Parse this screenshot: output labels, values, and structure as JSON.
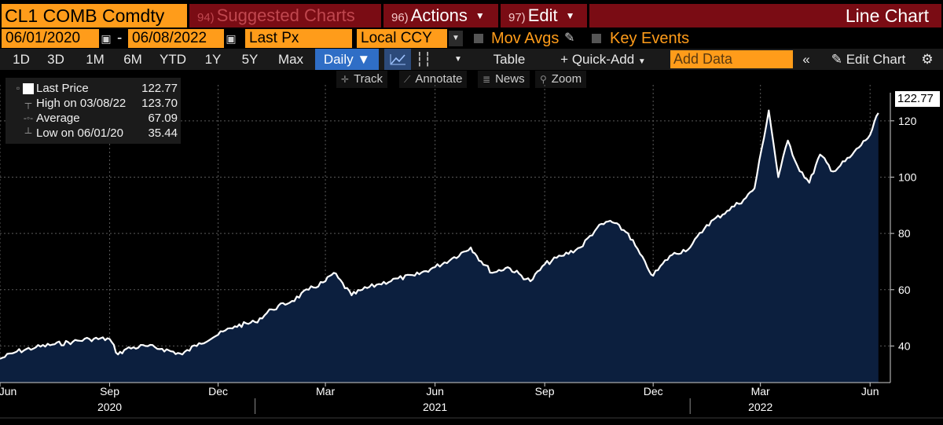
{
  "header": {
    "ticker": "CL1 COMB Comdty",
    "suggested": {
      "num": "94)",
      "label": "Suggested Charts"
    },
    "actions": {
      "num": "96)",
      "label": "Actions"
    },
    "edit": {
      "num": "97)",
      "label": "Edit"
    },
    "chart_type": "Line Chart"
  },
  "options": {
    "start_date": "06/01/2020",
    "end_date": "06/08/2022",
    "field": "Last Px",
    "currency": "Local CCY",
    "mov_avgs": "Mov Avgs",
    "key_events": "Key Events"
  },
  "toolbar": {
    "ranges": [
      "1D",
      "3D",
      "1M",
      "6M",
      "YTD",
      "1Y",
      "5Y",
      "Max"
    ],
    "frequency": "Daily ▼",
    "table": "Table",
    "quick_add": "+ Quick-Add",
    "add_data_placeholder": "Add Data",
    "edit_chart": "Edit Chart"
  },
  "tools": {
    "track": "Track",
    "annotate": "Annotate",
    "news": "News",
    "zoom": "Zoom"
  },
  "legend": {
    "last_label": "Last Price",
    "last_value": "122.77",
    "high_label": "High on 03/08/22",
    "high_value": "123.70",
    "avg_label": "Average",
    "avg_value": "67.09",
    "low_label": "Low on 06/01/20",
    "low_value": "35.44"
  },
  "last_price_tag": "122.77",
  "colors": {
    "accent": "#ff9c1a",
    "header_red": "#7a0c14",
    "selected_blue": "#2f6ec6",
    "area": "#0c1f3e",
    "line": "#ffffff"
  },
  "chart_data": {
    "type": "area",
    "title": "CL1 COMB Comdty",
    "series": [
      {
        "name": "Last Price",
        "x": [
          "2020-06-01",
          "2020-06-15",
          "2020-07-01",
          "2020-07-15",
          "2020-08-01",
          "2020-08-15",
          "2020-09-01",
          "2020-09-08",
          "2020-09-15",
          "2020-10-01",
          "2020-10-15",
          "2020-11-01",
          "2020-11-15",
          "2020-12-01",
          "2020-12-15",
          "2021-01-01",
          "2021-01-15",
          "2021-02-01",
          "2021-02-15",
          "2021-03-01",
          "2021-03-08",
          "2021-03-23",
          "2021-04-01",
          "2021-04-15",
          "2021-05-01",
          "2021-05-15",
          "2021-06-01",
          "2021-06-15",
          "2021-07-01",
          "2021-07-06",
          "2021-07-19",
          "2021-08-01",
          "2021-08-20",
          "2021-09-01",
          "2021-09-15",
          "2021-10-01",
          "2021-10-15",
          "2021-10-26",
          "2021-11-10",
          "2021-11-26",
          "2021-12-01",
          "2021-12-15",
          "2022-01-01",
          "2022-01-15",
          "2022-02-01",
          "2022-02-15",
          "2022-02-24",
          "2022-03-08",
          "2022-03-16",
          "2022-03-24",
          "2022-04-01",
          "2022-04-11",
          "2022-04-20",
          "2022-05-01",
          "2022-05-15",
          "2022-06-01",
          "2022-06-08"
        ],
        "values": [
          35.44,
          38,
          39.5,
          40.5,
          41.5,
          42.5,
          42.5,
          37,
          39,
          40,
          39,
          37,
          41,
          44,
          47,
          48.5,
          53,
          56,
          60,
          63,
          66,
          58,
          60,
          62,
          64,
          65,
          68,
          71,
          75,
          72,
          66,
          68,
          63,
          69,
          72,
          75,
          82,
          84.5,
          80,
          68,
          65,
          72,
          75,
          83,
          88,
          92,
          96,
          123.7,
          100,
          113,
          104,
          98,
          108,
          102,
          107,
          115,
          122.77
        ],
        "high": {
          "date": "03/08/22",
          "value": 123.7
        },
        "low": {
          "date": "06/01/20",
          "value": 35.44
        },
        "average": 67.09
      }
    ],
    "y_ticks": [
      40,
      60,
      80,
      100,
      120
    ],
    "x_ticks": [
      "Jun",
      "Sep",
      "Dec",
      "Mar",
      "Jun",
      "Sep",
      "Dec",
      "Mar",
      "Jun"
    ],
    "x_tick_dates": [
      "2020-06-01",
      "2020-09-01",
      "2020-12-01",
      "2021-03-01",
      "2021-06-01",
      "2021-09-01",
      "2021-12-01",
      "2022-03-01",
      "2022-06-01"
    ],
    "years": [
      "2020",
      "2021",
      "2022"
    ],
    "year_dates": [
      "2020-09-01",
      "2021-06-01",
      "2022-03-01"
    ],
    "ylim": [
      27,
      130
    ],
    "xlim": [
      "2020-06-01",
      "2022-06-18"
    ],
    "grid": true,
    "legend_position": "top-left"
  }
}
